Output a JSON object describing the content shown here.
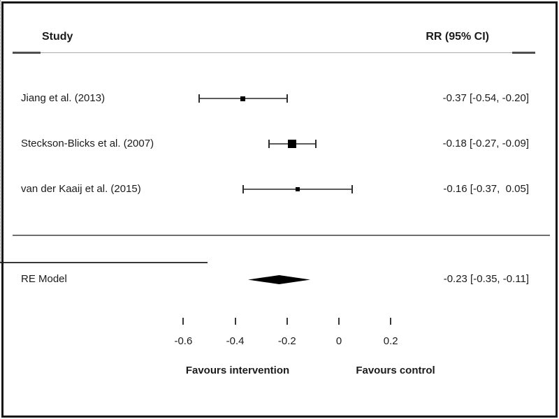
{
  "header": {
    "study_label": "Study",
    "effect_label": "RR (95% CI)"
  },
  "chart_data": {
    "type": "forest",
    "title": "",
    "effect_measure": "RR (95% CI)",
    "studies": [
      {
        "label": "Jiang et al. (2013)",
        "estimate": -0.37,
        "ci_lower": -0.54,
        "ci_upper": -0.2,
        "annotation": "-0.37 [-0.54, -0.20]",
        "marker_size": 7
      },
      {
        "label": "Steckson-Blicks et al. (2007)",
        "estimate": -0.18,
        "ci_lower": -0.27,
        "ci_upper": -0.09,
        "annotation": "-0.18 [-0.27, -0.09]",
        "marker_size": 12
      },
      {
        "label": "van der Kaaij et al. (2015)",
        "estimate": -0.16,
        "ci_lower": -0.37,
        "ci_upper": 0.05,
        "annotation": "-0.16 [-0.37,  0.05]",
        "marker_size": 6
      }
    ],
    "summary": {
      "label": "RE Model",
      "estimate": -0.23,
      "ci_lower": -0.35,
      "ci_upper": -0.11,
      "annotation": "-0.23 [-0.35, -0.11]"
    },
    "axis": {
      "range": [
        -0.6,
        0.2
      ],
      "ticks": [
        -0.6,
        -0.4,
        -0.2,
        0,
        0.2
      ],
      "tick_labels": [
        "-0.6",
        "-0.4",
        "-0.2",
        "0",
        "0.2"
      ],
      "reference_line": 0
    },
    "xlabel_left": "Favours intervention",
    "xlabel_right": "Favours control"
  },
  "colors": {
    "marker": "#000000",
    "ci_line": "#5c5c5c",
    "axis": "#383838",
    "text": "#1b1b1b"
  }
}
